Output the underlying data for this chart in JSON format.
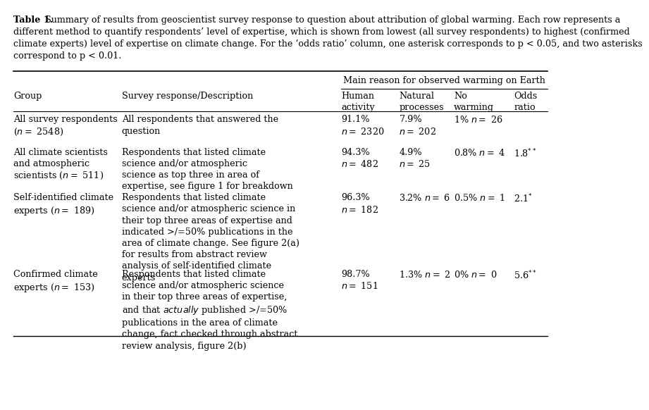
{
  "caption_bold": "Table 1.",
  "caption_rest": " Summary of results from geoscientist survey response to question about attribution of global warming. Each row represents a different method to quantify respondents’ level of expertise, which is shown from lowest (all survey respondents) to highest (confirmed climate experts) level of expertise on climate change. For the ‘odds ratio’ column, one asterisk corresponds to p < 0.05, and two asterisks correspond to p < 0.01.",
  "caption_lines": [
    "different method to quantify respondents’ level of expertise, which is shown from lowest (all survey respondents) to highest (confirmed",
    "climate experts) level of expertise on climate change. For the ‘odds ratio’ column, one asterisk corresponds to p < 0.05, and two asterisks",
    "correspond to p < 0.01."
  ],
  "span_header": "Main reason for observed warming on Earth",
  "col_headers": [
    "Group",
    "Survey response/Description",
    "Human\nactivity",
    "Natural\nprocesses",
    "No\nwarming",
    "Odds\nratio"
  ],
  "rows": [
    {
      "group": "All survey respondents\n(n = 2548)",
      "description": "All respondents that answered the\nquestion",
      "human": "91.1%\nn = 2320",
      "natural": "7.9%\nn = 202",
      "no_warming": "1% n = 26",
      "odds": "",
      "odds_sup": ""
    },
    {
      "group": "All climate scientists\nand atmospheric\nscientists (n = 511)",
      "description": "Respondents that listed climate\nscience and/or atmospheric\nscience as top three in area of\nexpertise, see figure 1 for breakdown",
      "human": "94.3%\nn = 482",
      "natural": "4.9%\nn = 25",
      "no_warming": "0.8% n = 4",
      "odds": "1.8",
      "odds_sup": "**"
    },
    {
      "group": "Self-identified climate\nexperts (n = 189)",
      "description": "Respondents that listed climate\nscience and/or atmospheric science in\ntheir top three areas of expertise and\nindicated >/=50% publications in the\narea of climate change. See figure 2(a)\nfor results from abstract review\nanalysis of self-identified climate\nexperts",
      "human": "96.3%\nn = 182",
      "natural": "3.2% n = 6",
      "no_warming": "0.5% n = 1",
      "odds": "2.1",
      "odds_sup": "*"
    },
    {
      "group": "Confirmed climate\nexperts (n = 153)",
      "description_pre": "Respondents that listed climate\nscience and/or atmospheric science\nin their top three areas of expertise,\nand that ",
      "description_italic": "actually",
      "description_post": " published >/=50%\npublications in the area of climate\nchange, fact checked through abstract\nreview analysis, figure 2(b)",
      "human": "98.7%\nn = 151",
      "natural": "1.3% n = 2",
      "no_warming": "0% n = 0",
      "odds": "5.6",
      "odds_sup": "**"
    }
  ],
  "bg_color": "#ffffff",
  "text_color": "#000000",
  "font_size": 9.2,
  "caption_font_size": 9.2
}
